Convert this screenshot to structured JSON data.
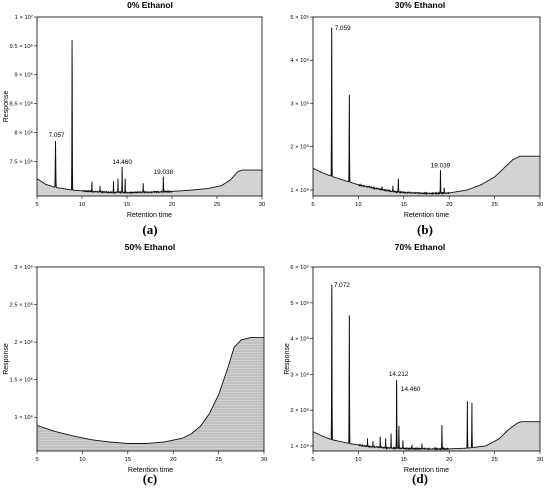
{
  "chart_data": [
    {
      "type": "line",
      "panel_label": "(a)",
      "title": "0% Ethanol",
      "xlabel": "Retention time",
      "ylabel": "Response",
      "xlim": [
        5,
        30
      ],
      "ylim": [
        6900000,
        10000000
      ],
      "xticks": [
        5,
        10,
        15,
        20,
        25,
        30
      ],
      "yticks": [
        {
          "v": 7500000,
          "label": "7.5 × 10⁶"
        },
        {
          "v": 8000000,
          "label": "8 × 10⁶"
        },
        {
          "v": 8500000,
          "label": "8.5 × 10⁶"
        },
        {
          "v": 9000000,
          "label": "9 × 10⁶"
        },
        {
          "v": 9500000,
          "label": "9.5 × 10⁶"
        },
        {
          "v": 10000000,
          "label": "1 × 10⁷"
        }
      ],
      "baseline": [
        [
          5,
          7200000
        ],
        [
          6,
          7100000
        ],
        [
          7,
          7050000
        ],
        [
          9,
          7000000
        ],
        [
          12,
          6970000
        ],
        [
          15,
          6960000
        ],
        [
          18,
          6970000
        ],
        [
          20,
          6980000
        ],
        [
          22,
          7000000
        ],
        [
          24,
          7030000
        ],
        [
          25.5,
          7080000
        ],
        [
          26.5,
          7180000
        ],
        [
          27.3,
          7320000
        ],
        [
          27.8,
          7350000
        ],
        [
          30,
          7350000
        ]
      ],
      "peaks": [
        {
          "x": 7.057,
          "y": 7850000,
          "w": 0.09
        },
        {
          "x": 8.9,
          "y": 9600000,
          "w": 0.07
        },
        {
          "x": 11.1,
          "y": 7150000,
          "w": 0.05
        },
        {
          "x": 12.0,
          "y": 7080000,
          "w": 0.05
        },
        {
          "x": 13.5,
          "y": 7150000,
          "w": 0.05
        },
        {
          "x": 14.0,
          "y": 7200000,
          "w": 0.05
        },
        {
          "x": 14.46,
          "y": 7400000,
          "w": 0.06
        },
        {
          "x": 14.8,
          "y": 7200000,
          "w": 0.05
        },
        {
          "x": 16.8,
          "y": 7120000,
          "w": 0.05
        },
        {
          "x": 19.038,
          "y": 7230000,
          "w": 0.06
        }
      ],
      "annotations": [
        {
          "x": 7.057,
          "y": 7850000,
          "label": "7.057"
        },
        {
          "x": 14.46,
          "y": 7400000,
          "label": "14.460"
        },
        {
          "x": 19.038,
          "y": 7230000,
          "label": "19.038"
        }
      ],
      "hatched": false
    },
    {
      "type": "line",
      "panel_label": "(b)",
      "title": "30% Ethanol",
      "xlabel": "Retention time",
      "ylabel": "",
      "xlim": [
        5,
        30
      ],
      "ylim": [
        860000,
        5000000
      ],
      "xticks": [
        5,
        10,
        15,
        20,
        25,
        30
      ],
      "yticks": [
        {
          "v": 1000000,
          "label": "1 × 10⁶"
        },
        {
          "v": 2000000,
          "label": "2 × 10⁶"
        },
        {
          "v": 3000000,
          "label": "3 × 10⁶"
        },
        {
          "v": 4000000,
          "label": "4 × 10⁶"
        },
        {
          "v": 5000000,
          "label": "5 × 10⁶"
        }
      ],
      "baseline": [
        [
          5,
          1500000
        ],
        [
          6,
          1400000
        ],
        [
          7,
          1320000
        ],
        [
          8,
          1250000
        ],
        [
          10,
          1120000
        ],
        [
          12,
          1030000
        ],
        [
          14,
          960000
        ],
        [
          16,
          930000
        ],
        [
          18,
          920000
        ],
        [
          20,
          930000
        ],
        [
          22,
          1000000
        ],
        [
          23.5,
          1120000
        ],
        [
          25,
          1300000
        ],
        [
          26,
          1500000
        ],
        [
          27,
          1700000
        ],
        [
          27.8,
          1780000
        ],
        [
          30,
          1780000
        ]
      ],
      "peaks": [
        {
          "x": 7.059,
          "y": 4750000,
          "w": 0.07
        },
        {
          "x": 9.0,
          "y": 3200000,
          "w": 0.07
        },
        {
          "x": 11.2,
          "y": 1100000,
          "w": 0.05
        },
        {
          "x": 12.6,
          "y": 1070000,
          "w": 0.05
        },
        {
          "x": 13.8,
          "y": 1100000,
          "w": 0.05
        },
        {
          "x": 14.4,
          "y": 1250000,
          "w": 0.06
        },
        {
          "x": 19.039,
          "y": 1450000,
          "w": 0.06
        },
        {
          "x": 19.45,
          "y": 1050000,
          "w": 0.05
        }
      ],
      "annotations": [
        {
          "x": 7.059,
          "y": 4750000,
          "label": "7.059"
        },
        {
          "x": 19.039,
          "y": 1450000,
          "label": "19.039"
        }
      ],
      "hatched": false
    },
    {
      "type": "line",
      "panel_label": "(c)",
      "title": "50% Ethanol",
      "xlabel": "Retention time",
      "ylabel": "Response",
      "xlim": [
        5,
        30
      ],
      "ylim": [
        550000,
        3000000
      ],
      "xticks": [
        5,
        10,
        15,
        20,
        25,
        30
      ],
      "yticks": [
        {
          "v": 1000000,
          "label": "1 × 10⁶"
        },
        {
          "v": 1500000,
          "label": "1.5 × 10⁶"
        },
        {
          "v": 2000000,
          "label": "2 × 10⁶"
        },
        {
          "v": 2500000,
          "label": "2.5 × 10⁶"
        },
        {
          "v": 3000000,
          "label": "3 × 10⁶"
        }
      ],
      "baseline": [
        [
          5,
          890000
        ],
        [
          7,
          810000
        ],
        [
          9,
          750000
        ],
        [
          11,
          700000
        ],
        [
          13,
          670000
        ],
        [
          15,
          650000
        ],
        [
          17,
          650000
        ],
        [
          19,
          670000
        ],
        [
          21,
          720000
        ],
        [
          22,
          780000
        ],
        [
          23,
          880000
        ],
        [
          24,
          1050000
        ],
        [
          25,
          1300000
        ],
        [
          26,
          1650000
        ],
        [
          26.7,
          1930000
        ],
        [
          27.5,
          2030000
        ],
        [
          28.5,
          2060000
        ],
        [
          30,
          2060000
        ]
      ],
      "peaks": [],
      "annotations": [],
      "hatched": true
    },
    {
      "type": "line",
      "panel_label": "(d)",
      "title": "70% Ethanol",
      "xlabel": "Retention time",
      "ylabel": "Response",
      "xlim": [
        5,
        30
      ],
      "ylim": [
        860000,
        6000000
      ],
      "xticks": [
        5,
        10,
        15,
        20,
        25,
        30
      ],
      "yticks": [
        {
          "v": 1000000,
          "label": "1 × 10⁶"
        },
        {
          "v": 2000000,
          "label": "2 × 10⁶"
        },
        {
          "v": 3000000,
          "label": "3 × 10⁶"
        },
        {
          "v": 4000000,
          "label": "4 × 10⁶"
        },
        {
          "v": 5000000,
          "label": "5 × 10⁶"
        },
        {
          "v": 6000000,
          "label": "6 × 10⁶"
        }
      ],
      "baseline": [
        [
          5,
          1400000
        ],
        [
          6,
          1280000
        ],
        [
          7,
          1180000
        ],
        [
          9,
          1070000
        ],
        [
          11,
          990000
        ],
        [
          13,
          950000
        ],
        [
          15,
          930000
        ],
        [
          18,
          920000
        ],
        [
          20,
          920000
        ],
        [
          22,
          940000
        ],
        [
          24,
          1000000
        ],
        [
          25.5,
          1200000
        ],
        [
          26.5,
          1450000
        ],
        [
          27.5,
          1640000
        ],
        [
          28,
          1680000
        ],
        [
          30,
          1680000
        ]
      ],
      "peaks": [
        {
          "x": 7.072,
          "y": 5500000,
          "w": 0.07
        },
        {
          "x": 9.0,
          "y": 4650000,
          "w": 0.07
        },
        {
          "x": 11.0,
          "y": 1200000,
          "w": 0.05
        },
        {
          "x": 11.6,
          "y": 1120000,
          "w": 0.05
        },
        {
          "x": 12.4,
          "y": 1250000,
          "w": 0.05
        },
        {
          "x": 13.0,
          "y": 1200000,
          "w": 0.05
        },
        {
          "x": 13.6,
          "y": 1350000,
          "w": 0.05
        },
        {
          "x": 14.212,
          "y": 2850000,
          "w": 0.07
        },
        {
          "x": 14.46,
          "y": 1550000,
          "w": 0.06
        },
        {
          "x": 14.9,
          "y": 1150000,
          "w": 0.05
        },
        {
          "x": 15.9,
          "y": 1020000,
          "w": 0.05
        },
        {
          "x": 17.0,
          "y": 1050000,
          "w": 0.05
        },
        {
          "x": 19.2,
          "y": 1580000,
          "w": 0.06
        },
        {
          "x": 22.0,
          "y": 2250000,
          "w": 0.06
        },
        {
          "x": 22.5,
          "y": 2200000,
          "w": 0.06
        }
      ],
      "annotations": [
        {
          "x": 7.072,
          "y": 5500000,
          "label": "7.072"
        },
        {
          "x": 14.212,
          "y": 2850000,
          "label": "14.212"
        },
        {
          "x": 14.46,
          "y": 2650000,
          "label": "14.460"
        }
      ],
      "hatched": false
    }
  ]
}
